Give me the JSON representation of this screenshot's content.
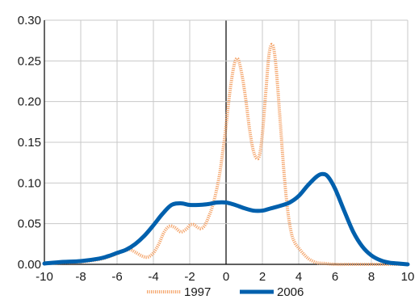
{
  "chart_data": {
    "type": "line",
    "title": "",
    "xlabel": "",
    "ylabel": "",
    "xlim": [
      -10,
      10
    ],
    "ylim": [
      0,
      0.3
    ],
    "grid": true,
    "legend_position": "bottom",
    "x_ticks": [
      "-10",
      "-8",
      "-6",
      "-4",
      "-2",
      "0",
      "2",
      "4",
      "6",
      "8",
      "10"
    ],
    "y_ticks": [
      "0.00",
      "0.05",
      "0.10",
      "0.15",
      "0.20",
      "0.25",
      "0.30"
    ],
    "series": [
      {
        "name": "1997",
        "color": "#f4a46a",
        "style": "dotted-thick",
        "x": [
          -10,
          -9,
          -8,
          -7,
          -6.5,
          -6,
          -5.7,
          -5.3,
          -5,
          -4.6,
          -4.3,
          -4,
          -3.7,
          -3.4,
          -3.1,
          -2.8,
          -2.5,
          -2.2,
          -2,
          -1.8,
          -1.6,
          -1.4,
          -1.2,
          -1,
          -0.7,
          -0.4,
          -0.2,
          0,
          0.2,
          0.4,
          0.55,
          0.7,
          0.9,
          1.1,
          1.3,
          1.5,
          1.7,
          1.85,
          2,
          2.2,
          2.35,
          2.5,
          2.65,
          2.8,
          3,
          3.2,
          3.4,
          3.6,
          3.8,
          4,
          4.3,
          4.6,
          5,
          5.5,
          6,
          7,
          8,
          9,
          10
        ],
        "values": [
          0.001,
          0.002,
          0.003,
          0.006,
          0.009,
          0.013,
          0.016,
          0.018,
          0.015,
          0.01,
          0.009,
          0.014,
          0.025,
          0.04,
          0.047,
          0.045,
          0.04,
          0.043,
          0.048,
          0.049,
          0.046,
          0.044,
          0.047,
          0.056,
          0.075,
          0.105,
          0.135,
          0.17,
          0.21,
          0.24,
          0.252,
          0.25,
          0.23,
          0.2,
          0.165,
          0.14,
          0.13,
          0.135,
          0.16,
          0.215,
          0.255,
          0.27,
          0.262,
          0.23,
          0.17,
          0.11,
          0.065,
          0.038,
          0.026,
          0.02,
          0.012,
          0.006,
          0.002,
          0.001,
          0.0,
          0.0,
          0.0,
          0.0,
          0.0
        ]
      },
      {
        "name": "2006",
        "color": "#0060ad",
        "style": "solid-thick",
        "x": [
          -10,
          -9,
          -8,
          -7,
          -6.5,
          -6,
          -5.5,
          -5,
          -4.5,
          -4,
          -3.5,
          -3,
          -2.5,
          -2,
          -1.5,
          -1,
          -0.5,
          0,
          0.5,
          1,
          1.5,
          2,
          2.5,
          3,
          3.5,
          4,
          4.5,
          5,
          5.3,
          5.6,
          6,
          6.5,
          7,
          7.5,
          8,
          8.5,
          9,
          9.5,
          10
        ],
        "values": [
          0.001,
          0.003,
          0.004,
          0.007,
          0.01,
          0.014,
          0.018,
          0.025,
          0.035,
          0.048,
          0.062,
          0.073,
          0.075,
          0.073,
          0.073,
          0.074,
          0.076,
          0.076,
          0.073,
          0.069,
          0.066,
          0.066,
          0.069,
          0.072,
          0.076,
          0.084,
          0.097,
          0.108,
          0.111,
          0.108,
          0.093,
          0.066,
          0.04,
          0.022,
          0.011,
          0.005,
          0.002,
          0.001,
          0.0
        ]
      }
    ]
  }
}
